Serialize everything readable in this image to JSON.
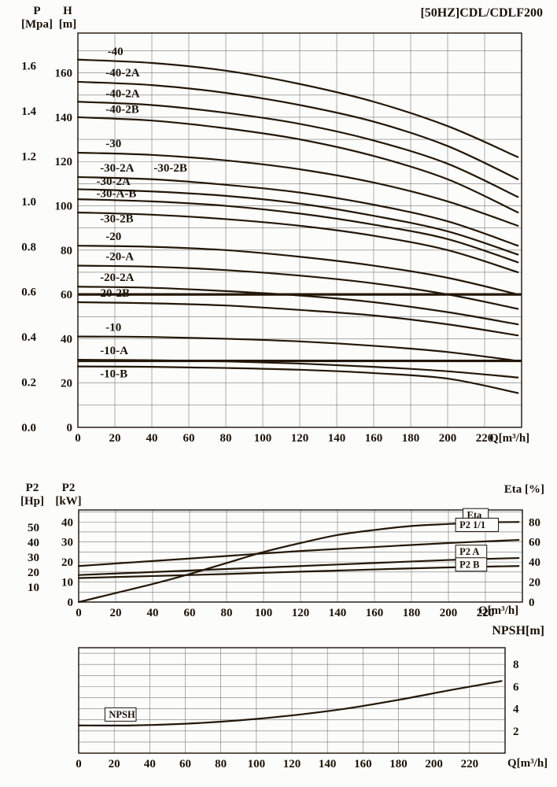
{
  "title": "[50HZ]CDL/CDLF200",
  "labels": {
    "q_axis": "Q[m³/h]",
    "top_left_p": {
      "t": "P",
      "u": "[Mpa]"
    },
    "top_left_h": {
      "t": "H",
      "u": "[m]"
    },
    "mid_left_hp": {
      "t": "P2",
      "u": "[Hp]"
    },
    "mid_left_kw": {
      "t": "P2",
      "u": "[kW]"
    },
    "eta_header": "Eta [%]",
    "npsh_header": "NPSH[m]"
  },
  "colors": {
    "ink": "#241708",
    "grid": "#787878",
    "bg": "#fcfcfa"
  },
  "chart_data": [
    {
      "id": "head-capacity",
      "type": "line",
      "title": "[50HZ]CDL/CDLF200",
      "xlabel": "Q[m³/h]",
      "ylabel": "H [m] / P [Mpa]",
      "xlim": [
        0,
        240
      ],
      "ylim": [
        0,
        178
      ],
      "x_ticks": [
        0,
        20,
        40,
        60,
        80,
        100,
        120,
        140,
        160,
        180,
        200,
        220
      ],
      "h_ticks": [
        0,
        20,
        40,
        60,
        80,
        100,
        120,
        140,
        160
      ],
      "p_ticks": [
        "0.0",
        "0.2",
        "0.4",
        "0.6",
        "0.8",
        "1.0",
        "1.2",
        "1.4",
        "1.6"
      ],
      "grid": {
        "x_step": 20,
        "y_step": 10
      },
      "limit_lines": [
        60,
        30
      ],
      "series": [
        {
          "name": "-40",
          "points": [
            [
              0,
              166
            ],
            [
              40,
              164.5
            ],
            [
              80,
              161
            ],
            [
              120,
              155
            ],
            [
              160,
              147
            ],
            [
              200,
              136
            ],
            [
              238,
              122
            ]
          ]
        },
        {
          "name": "-40-2A",
          "points": [
            [
              0,
              156
            ],
            [
              40,
              154.5
            ],
            [
              80,
              151
            ],
            [
              120,
              145.5
            ],
            [
              160,
              138
            ],
            [
              200,
              127
            ],
            [
              238,
              112
            ]
          ]
        },
        {
          "name": "-40-2A",
          "points": [
            [
              0,
              147
            ],
            [
              40,
              145.5
            ],
            [
              80,
              142
            ],
            [
              120,
              137
            ],
            [
              160,
              129.5
            ],
            [
              200,
              119
            ],
            [
              238,
              104
            ]
          ]
        },
        {
          "name": "-40-2B",
          "points": [
            [
              0,
              140
            ],
            [
              40,
              138.5
            ],
            [
              80,
              135
            ],
            [
              120,
              130
            ],
            [
              160,
              122.5
            ],
            [
              200,
              112
            ],
            [
              238,
              97
            ]
          ]
        },
        {
          "name": "-30",
          "points": [
            [
              0,
              124
            ],
            [
              40,
              123
            ],
            [
              80,
              120.5
            ],
            [
              120,
              116.5
            ],
            [
              160,
              110.5
            ],
            [
              200,
              102
            ],
            [
              238,
              91
            ]
          ]
        },
        {
          "name": "-30-2A",
          "points": [
            [
              0,
              113
            ],
            [
              40,
              112
            ],
            [
              80,
              109.5
            ],
            [
              120,
              106
            ],
            [
              160,
              100.5
            ],
            [
              200,
              93
            ],
            [
              238,
              82
            ]
          ]
        },
        {
          "name": "-30-2A",
          "points": [
            [
              0,
              107.5
            ],
            [
              40,
              106.5
            ],
            [
              80,
              104.5
            ],
            [
              120,
              101
            ],
            [
              160,
              95.5
            ],
            [
              200,
              88.5
            ],
            [
              238,
              78
            ]
          ]
        },
        {
          "name": "-30-A-B",
          "points": [
            [
              0,
              103
            ],
            [
              40,
              102
            ],
            [
              80,
              100
            ],
            [
              120,
              96.5
            ],
            [
              160,
              91.5
            ],
            [
              200,
              85
            ],
            [
              238,
              74.5
            ]
          ]
        },
        {
          "name": "-30-2B",
          "points": [
            [
              0,
              97
            ],
            [
              40,
              96
            ],
            [
              80,
              94
            ],
            [
              120,
              91
            ],
            [
              160,
              86.5
            ],
            [
              200,
              80
            ],
            [
              238,
              70
            ]
          ]
        },
        {
          "name": "-20",
          "points": [
            [
              0,
              82
            ],
            [
              40,
              81.5
            ],
            [
              80,
              80
            ],
            [
              120,
              77
            ],
            [
              160,
              73
            ],
            [
              200,
              67.5
            ],
            [
              238,
              60
            ]
          ]
        },
        {
          "name": "-20-A",
          "points": [
            [
              0,
              73
            ],
            [
              40,
              72.5
            ],
            [
              80,
              71
            ],
            [
              120,
              68.5
            ],
            [
              160,
              65
            ],
            [
              200,
              60
            ],
            [
              238,
              53.5
            ]
          ]
        },
        {
          "name": "-20-2A",
          "points": [
            [
              0,
              63.5
            ],
            [
              40,
              63
            ],
            [
              80,
              61.5
            ],
            [
              120,
              59.5
            ],
            [
              160,
              56.5
            ],
            [
              200,
              52
            ],
            [
              238,
              46.5
            ]
          ]
        },
        {
          "name": "-20-2B",
          "points": [
            [
              0,
              56.5
            ],
            [
              40,
              56
            ],
            [
              80,
              55
            ],
            [
              120,
              53
            ],
            [
              160,
              50.5
            ],
            [
              200,
              46.5
            ],
            [
              238,
              41.5
            ]
          ]
        },
        {
          "name": "-10",
          "points": [
            [
              0,
              41
            ],
            [
              40,
              40.8
            ],
            [
              80,
              40
            ],
            [
              120,
              38.8
            ],
            [
              160,
              36.8
            ],
            [
              200,
              34
            ],
            [
              238,
              30
            ]
          ]
        },
        {
          "name": "-10-A",
          "points": [
            [
              0,
              30.5
            ],
            [
              40,
              30.3
            ],
            [
              80,
              29.8
            ],
            [
              120,
              28.8
            ],
            [
              160,
              27.3
            ],
            [
              200,
              25.3
            ],
            [
              238,
              22.5
            ]
          ]
        },
        {
          "name": "-10-B",
          "points": [
            [
              0,
              27.5
            ],
            [
              40,
              27.3
            ],
            [
              80,
              26.8
            ],
            [
              120,
              26
            ],
            [
              160,
              24.5
            ],
            [
              200,
              22
            ],
            [
              238,
              15.5
            ]
          ]
        }
      ],
      "labels": [
        {
          "text": "-40",
          "x": 16,
          "y": 168
        },
        {
          "text": "-40-2A",
          "x": 15,
          "y": 158.5
        },
        {
          "text": "-40-2A",
          "x": 15,
          "y": 149
        },
        {
          "text": "-40-2B",
          "x": 15,
          "y": 142
        },
        {
          "text": "-30",
          "x": 15,
          "y": 126.5
        },
        {
          "text": "-30-2A",
          "x": 12,
          "y": 115.5
        },
        {
          "text": "-30-2B",
          "x": 41,
          "y": 115.5
        },
        {
          "text": "-30-2A",
          "x": 10,
          "y": 109.5
        },
        {
          "text": "-30-A-B",
          "x": 10,
          "y": 104
        },
        {
          "text": "-30-2B",
          "x": 12,
          "y": 92.5
        },
        {
          "text": "-20",
          "x": 15,
          "y": 84.5
        },
        {
          "text": "-20-A",
          "x": 15,
          "y": 75.5
        },
        {
          "text": "-20-2A",
          "x": 12,
          "y": 66
        },
        {
          "text": "-20-2B",
          "x": 10,
          "y": 59
        },
        {
          "text": "-10",
          "x": 15,
          "y": 43.5
        },
        {
          "text": "-10-A",
          "x": 12,
          "y": 33
        },
        {
          "text": "-10-B",
          "x": 12,
          "y": 22.5
        }
      ]
    },
    {
      "id": "power-efficiency",
      "type": "line",
      "xlabel": "Q[m³/h]",
      "ylabel": "P2 [kW] / P2 [Hp]",
      "ylabel_right": "Eta [%]",
      "xlim": [
        0,
        240
      ],
      "ylim": [
        0,
        46
      ],
      "x_ticks": [
        0,
        20,
        40,
        60,
        80,
        100,
        120,
        140,
        160,
        180,
        200,
        220
      ],
      "kw_ticks": [
        0,
        10,
        20,
        30,
        40
      ],
      "hp_ticks": [
        10,
        20,
        30,
        40,
        50
      ],
      "eta_ticks": [
        0,
        20,
        40,
        60,
        80
      ],
      "grid": {
        "x_step": 20,
        "y_step": 5
      },
      "series": [
        {
          "name": "Eta",
          "points": [
            [
              0,
              0
            ],
            [
              20,
              4.5
            ],
            [
              40,
              9
            ],
            [
              60,
              14
            ],
            [
              80,
              19.5
            ],
            [
              100,
              25
            ],
            [
              120,
              29.5
            ],
            [
              140,
              33.5
            ],
            [
              160,
              36
            ],
            [
              180,
              38
            ],
            [
              200,
              39
            ],
            [
              220,
              39.8
            ],
            [
              238,
              40
            ]
          ]
        },
        {
          "name": "P2 1/1",
          "points": [
            [
              0,
              18
            ],
            [
              40,
              20.5
            ],
            [
              80,
              23
            ],
            [
              120,
              25.5
            ],
            [
              160,
              27.5
            ],
            [
              200,
              29.5
            ],
            [
              238,
              31
            ]
          ]
        },
        {
          "name": "P2 A",
          "points": [
            [
              0,
              13.5
            ],
            [
              40,
              15
            ],
            [
              80,
              16.5
            ],
            [
              120,
              18
            ],
            [
              160,
              19.5
            ],
            [
              200,
              21
            ],
            [
              238,
              22
            ]
          ]
        },
        {
          "name": "P2 B",
          "points": [
            [
              0,
              12
            ],
            [
              40,
              13
            ],
            [
              80,
              14
            ],
            [
              120,
              15.2
            ],
            [
              160,
              16.3
            ],
            [
              200,
              17.3
            ],
            [
              238,
              18
            ]
          ]
        }
      ],
      "labels": [
        {
          "text": "Eta",
          "x": 210,
          "y": 41.8,
          "box": true
        },
        {
          "text": "P2 1/1",
          "x": 206,
          "y": 37,
          "box": true
        },
        {
          "text": "P2 A",
          "x": 206,
          "y": 23.5,
          "box": true
        },
        {
          "text": "P2 B",
          "x": 206,
          "y": 17.2,
          "box": true
        }
      ]
    },
    {
      "id": "npsh",
      "type": "line",
      "xlabel": "Q[m³/h]",
      "ylabel_right": "NPSH[m]",
      "xlim": [
        0,
        240
      ],
      "ylim": [
        0,
        9.5
      ],
      "x_ticks": [
        0,
        20,
        40,
        60,
        80,
        100,
        120,
        140,
        160,
        180,
        200,
        220
      ],
      "right_ticks": [
        2,
        4,
        6,
        8
      ],
      "grid": {
        "x_step": 20,
        "y_step": 1
      },
      "series": [
        {
          "name": "NPSH",
          "points": [
            [
              0,
              2.5
            ],
            [
              30,
              2.5
            ],
            [
              60,
              2.65
            ],
            [
              90,
              2.95
            ],
            [
              120,
              3.4
            ],
            [
              150,
              4.0
            ],
            [
              180,
              4.8
            ],
            [
              210,
              5.7
            ],
            [
              238,
              6.5
            ]
          ]
        }
      ],
      "labels": [
        {
          "text": "NPSH",
          "x": 17,
          "y": 3.2,
          "box": true
        }
      ]
    }
  ]
}
